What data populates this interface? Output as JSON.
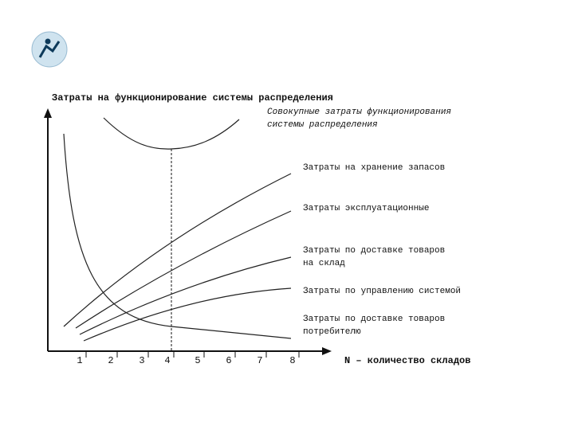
{
  "title": "Затраты на функционирование системы распределения",
  "x_axis_label": "N – количество складов",
  "x_ticks": [
    "1",
    "2",
    "3",
    "4",
    "5",
    "6",
    "7",
    "8"
  ],
  "curves": [
    {
      "lines": [
        "Совокупные затраты функционирования",
        "системы распределения"
      ]
    },
    {
      "lines": [
        "Затраты на хранение запасов"
      ]
    },
    {
      "lines": [
        "Затраты эксплуатационные"
      ]
    },
    {
      "lines": [
        "Затраты по доставке товаров",
        "на склад"
      ]
    },
    {
      "lines": [
        "Затраты по управлению системой"
      ]
    },
    {
      "lines": [
        "Затраты по доставке товаров",
        "потребителю"
      ]
    }
  ]
}
